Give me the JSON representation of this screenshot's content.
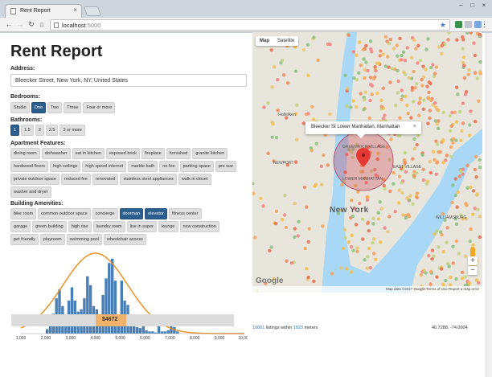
{
  "browser": {
    "tab_title": "Rent Report",
    "tab_close": "×",
    "url_host": "localhost",
    "url_port": ":5000",
    "window_buttons": [
      "–",
      "□",
      "×"
    ]
  },
  "page": {
    "title": "Rent Report",
    "address_label": "Address:",
    "address_value": "Bleecker Street, New York, NY, United States",
    "bedrooms_label": "Bedrooms:",
    "bedrooms": [
      {
        "label": "Studio",
        "selected": false
      },
      {
        "label": "One",
        "selected": true
      },
      {
        "label": "Two",
        "selected": false
      },
      {
        "label": "Three",
        "selected": false
      },
      {
        "label": "Four or more",
        "selected": false
      }
    ],
    "bathrooms_label": "Bathrooms:",
    "bathrooms": [
      {
        "label": "1",
        "selected": true
      },
      {
        "label": "1.5",
        "selected": false
      },
      {
        "label": "2",
        "selected": false
      },
      {
        "label": "2.5",
        "selected": false
      },
      {
        "label": "3 or more",
        "selected": false
      }
    ],
    "features_label": "Apartment Features:",
    "features": [
      {
        "label": "dining room",
        "selected": false
      },
      {
        "label": "dishwasher",
        "selected": false
      },
      {
        "label": "eat in kitchen",
        "selected": false
      },
      {
        "label": "exposed brick",
        "selected": false
      },
      {
        "label": "fireplace",
        "selected": false
      },
      {
        "label": "furnished",
        "selected": false
      },
      {
        "label": "granite kitchen",
        "selected": false
      },
      {
        "label": "hardwood floors",
        "selected": false
      },
      {
        "label": "high ceilings",
        "selected": false
      },
      {
        "label": "high speed internet",
        "selected": false
      },
      {
        "label": "marble bath",
        "selected": false
      },
      {
        "label": "no fee",
        "selected": false
      },
      {
        "label": "parking space",
        "selected": false
      },
      {
        "label": "pre war",
        "selected": false
      },
      {
        "label": "private outdoor space",
        "selected": false
      },
      {
        "label": "reduced fee",
        "selected": false
      },
      {
        "label": "renovated",
        "selected": false
      },
      {
        "label": "stainless steel appliances",
        "selected": false
      },
      {
        "label": "walk in closet",
        "selected": false
      },
      {
        "label": "washer and dryer",
        "selected": false
      }
    ],
    "amenities_label": "Building Amenities:",
    "amenities": [
      {
        "label": "bike room",
        "selected": false
      },
      {
        "label": "common outdoor space",
        "selected": false
      },
      {
        "label": "concierge",
        "selected": false
      },
      {
        "label": "doorman",
        "selected": true
      },
      {
        "label": "elevator",
        "selected": true
      },
      {
        "label": "fitness center",
        "selected": false
      },
      {
        "label": "garage",
        "selected": false
      },
      {
        "label": "green building",
        "selected": false
      },
      {
        "label": "high rise",
        "selected": false
      },
      {
        "label": "laundry room",
        "selected": false
      },
      {
        "label": "live in super",
        "selected": false
      },
      {
        "label": "lounge",
        "selected": false
      },
      {
        "label": "new construction",
        "selected": false
      },
      {
        "label": "pet friendly",
        "selected": false
      },
      {
        "label": "playroom",
        "selected": false
      },
      {
        "label": "swimming pool",
        "selected": false
      },
      {
        "label": "wheelchair access",
        "selected": false
      }
    ],
    "slider": {
      "value_label": "$4672",
      "value": 4672
    }
  },
  "chart_data": {
    "type": "bar",
    "xlabel": "",
    "ylabel": "",
    "xlim": [
      1000,
      10000
    ],
    "ticks": [
      "1,000",
      "2,000",
      "3,000",
      "4,000",
      "5,000",
      "6,000",
      "7,000",
      "8,000",
      "9,000",
      "10,000"
    ],
    "tick_values": [
      1000,
      2000,
      3000,
      4000,
      5000,
      6000,
      7000,
      8000,
      9000,
      10000
    ],
    "bin_start": 2000,
    "bin_width": 125,
    "values": [
      4,
      8,
      18,
      32,
      40,
      25,
      10,
      30,
      42,
      30,
      20,
      22,
      32,
      52,
      44,
      25,
      22,
      8,
      35,
      50,
      64,
      68,
      48,
      10,
      48,
      30,
      26,
      10,
      8,
      6,
      5,
      12,
      3,
      2,
      2,
      1,
      8,
      2,
      2,
      3,
      10,
      6,
      2
    ],
    "bar_color": "#4a7fb5",
    "curve_color": "#f08a1c",
    "highlight_range": [
      4000,
      5250
    ]
  },
  "map": {
    "type_map": "Map",
    "type_satellite": "Satellite",
    "info_text": "Bleecker St Lower Manhattan, Manhattan",
    "info_close": "×",
    "labels": {
      "hoboken": "Hoboken",
      "greenwich": "GREENWICH VILLAGE",
      "lower_manhattan": "LOWER MANHATTAN",
      "east_village": "EAST VILLAGE",
      "newport": "NEWPORT",
      "new_york": "New York",
      "williamsburg": "WILLIAMSBURG",
      "zoom_in": "+",
      "zoom_out": "−"
    },
    "google": "Google",
    "footer": "Map data ©2017 Google   Terms of Use   Report a map error",
    "status_count": "10001",
    "status_mid": " listings within ",
    "status_radius": "1023",
    "status_unit": " meters",
    "coords": "40.7288, -74.0004"
  }
}
